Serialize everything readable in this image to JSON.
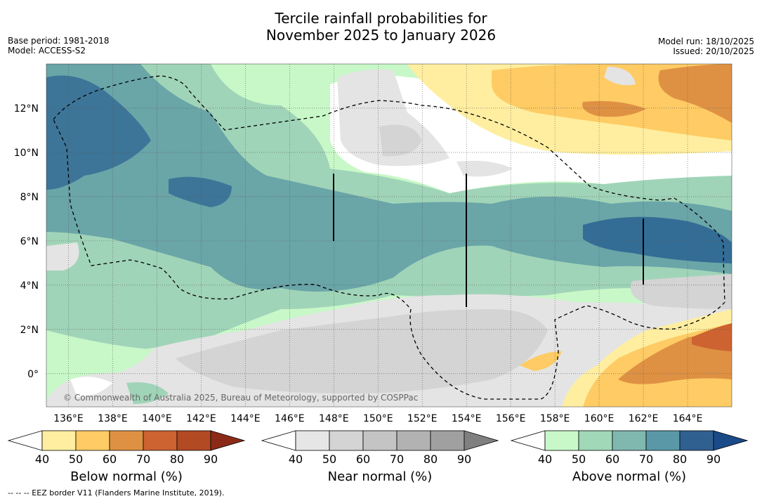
{
  "title": {
    "line1": "Tercile rainfall probabilities for",
    "line2": "November 2025 to January 2026"
  },
  "meta_left": {
    "base_period": "Base period: 1981-2018",
    "model": "Model: ACCESS-S2"
  },
  "meta_right": {
    "model_run": "Model run: 18/10/2025",
    "issued": "Issued: 20/10/2025"
  },
  "map": {
    "lon_labels": [
      "136°E",
      "138°E",
      "140°E",
      "142°E",
      "144°E",
      "146°E",
      "148°E",
      "150°E",
      "152°E",
      "154°E",
      "156°E",
      "158°E",
      "160°E",
      "162°E",
      "164°E"
    ],
    "lon_values": [
      136,
      138,
      140,
      142,
      144,
      146,
      148,
      150,
      152,
      154,
      156,
      158,
      160,
      162,
      164
    ],
    "lat_labels": [
      "12°N",
      "10°N",
      "8°N",
      "6°N",
      "4°N",
      "2°N",
      "0°"
    ],
    "lat_values": [
      12,
      10,
      8,
      6,
      4,
      2,
      0
    ],
    "lon_range": [
      135,
      166
    ],
    "lat_range": [
      -1.5,
      14
    ],
    "copyright": "© Commonwealth of Australia 2025, Bureau of Meteorology, supported by COSPPac"
  },
  "colorbars": [
    {
      "name": "below",
      "title": "Below normal (%)",
      "ticks": [
        "40",
        "50",
        "60",
        "70",
        "80",
        "90"
      ],
      "colors": [
        "#ffeea0",
        "#fecb64",
        "#df9143",
        "#cc6331",
        "#b24a24",
        "#8c2a18"
      ]
    },
    {
      "name": "near",
      "title": "Near normal (%)",
      "ticks": [
        "40",
        "50",
        "60",
        "70",
        "80",
        "90"
      ],
      "colors": [
        "#e6e6e6",
        "#d4d4d4",
        "#c4c4c4",
        "#b2b2b2",
        "#a0a0a0",
        "#808080"
      ]
    },
    {
      "name": "above",
      "title": "Above normal (%)",
      "ticks": [
        "40",
        "50",
        "60",
        "70",
        "80",
        "90"
      ],
      "colors": [
        "#c8f8c8",
        "#a0d8b8",
        "#80b8b0",
        "#5a98a8",
        "#306090",
        "#1a4a88"
      ]
    }
  ],
  "footnote": "--  --  -- EEZ border V11 (Flanders Marine Institute, 2019)."
}
